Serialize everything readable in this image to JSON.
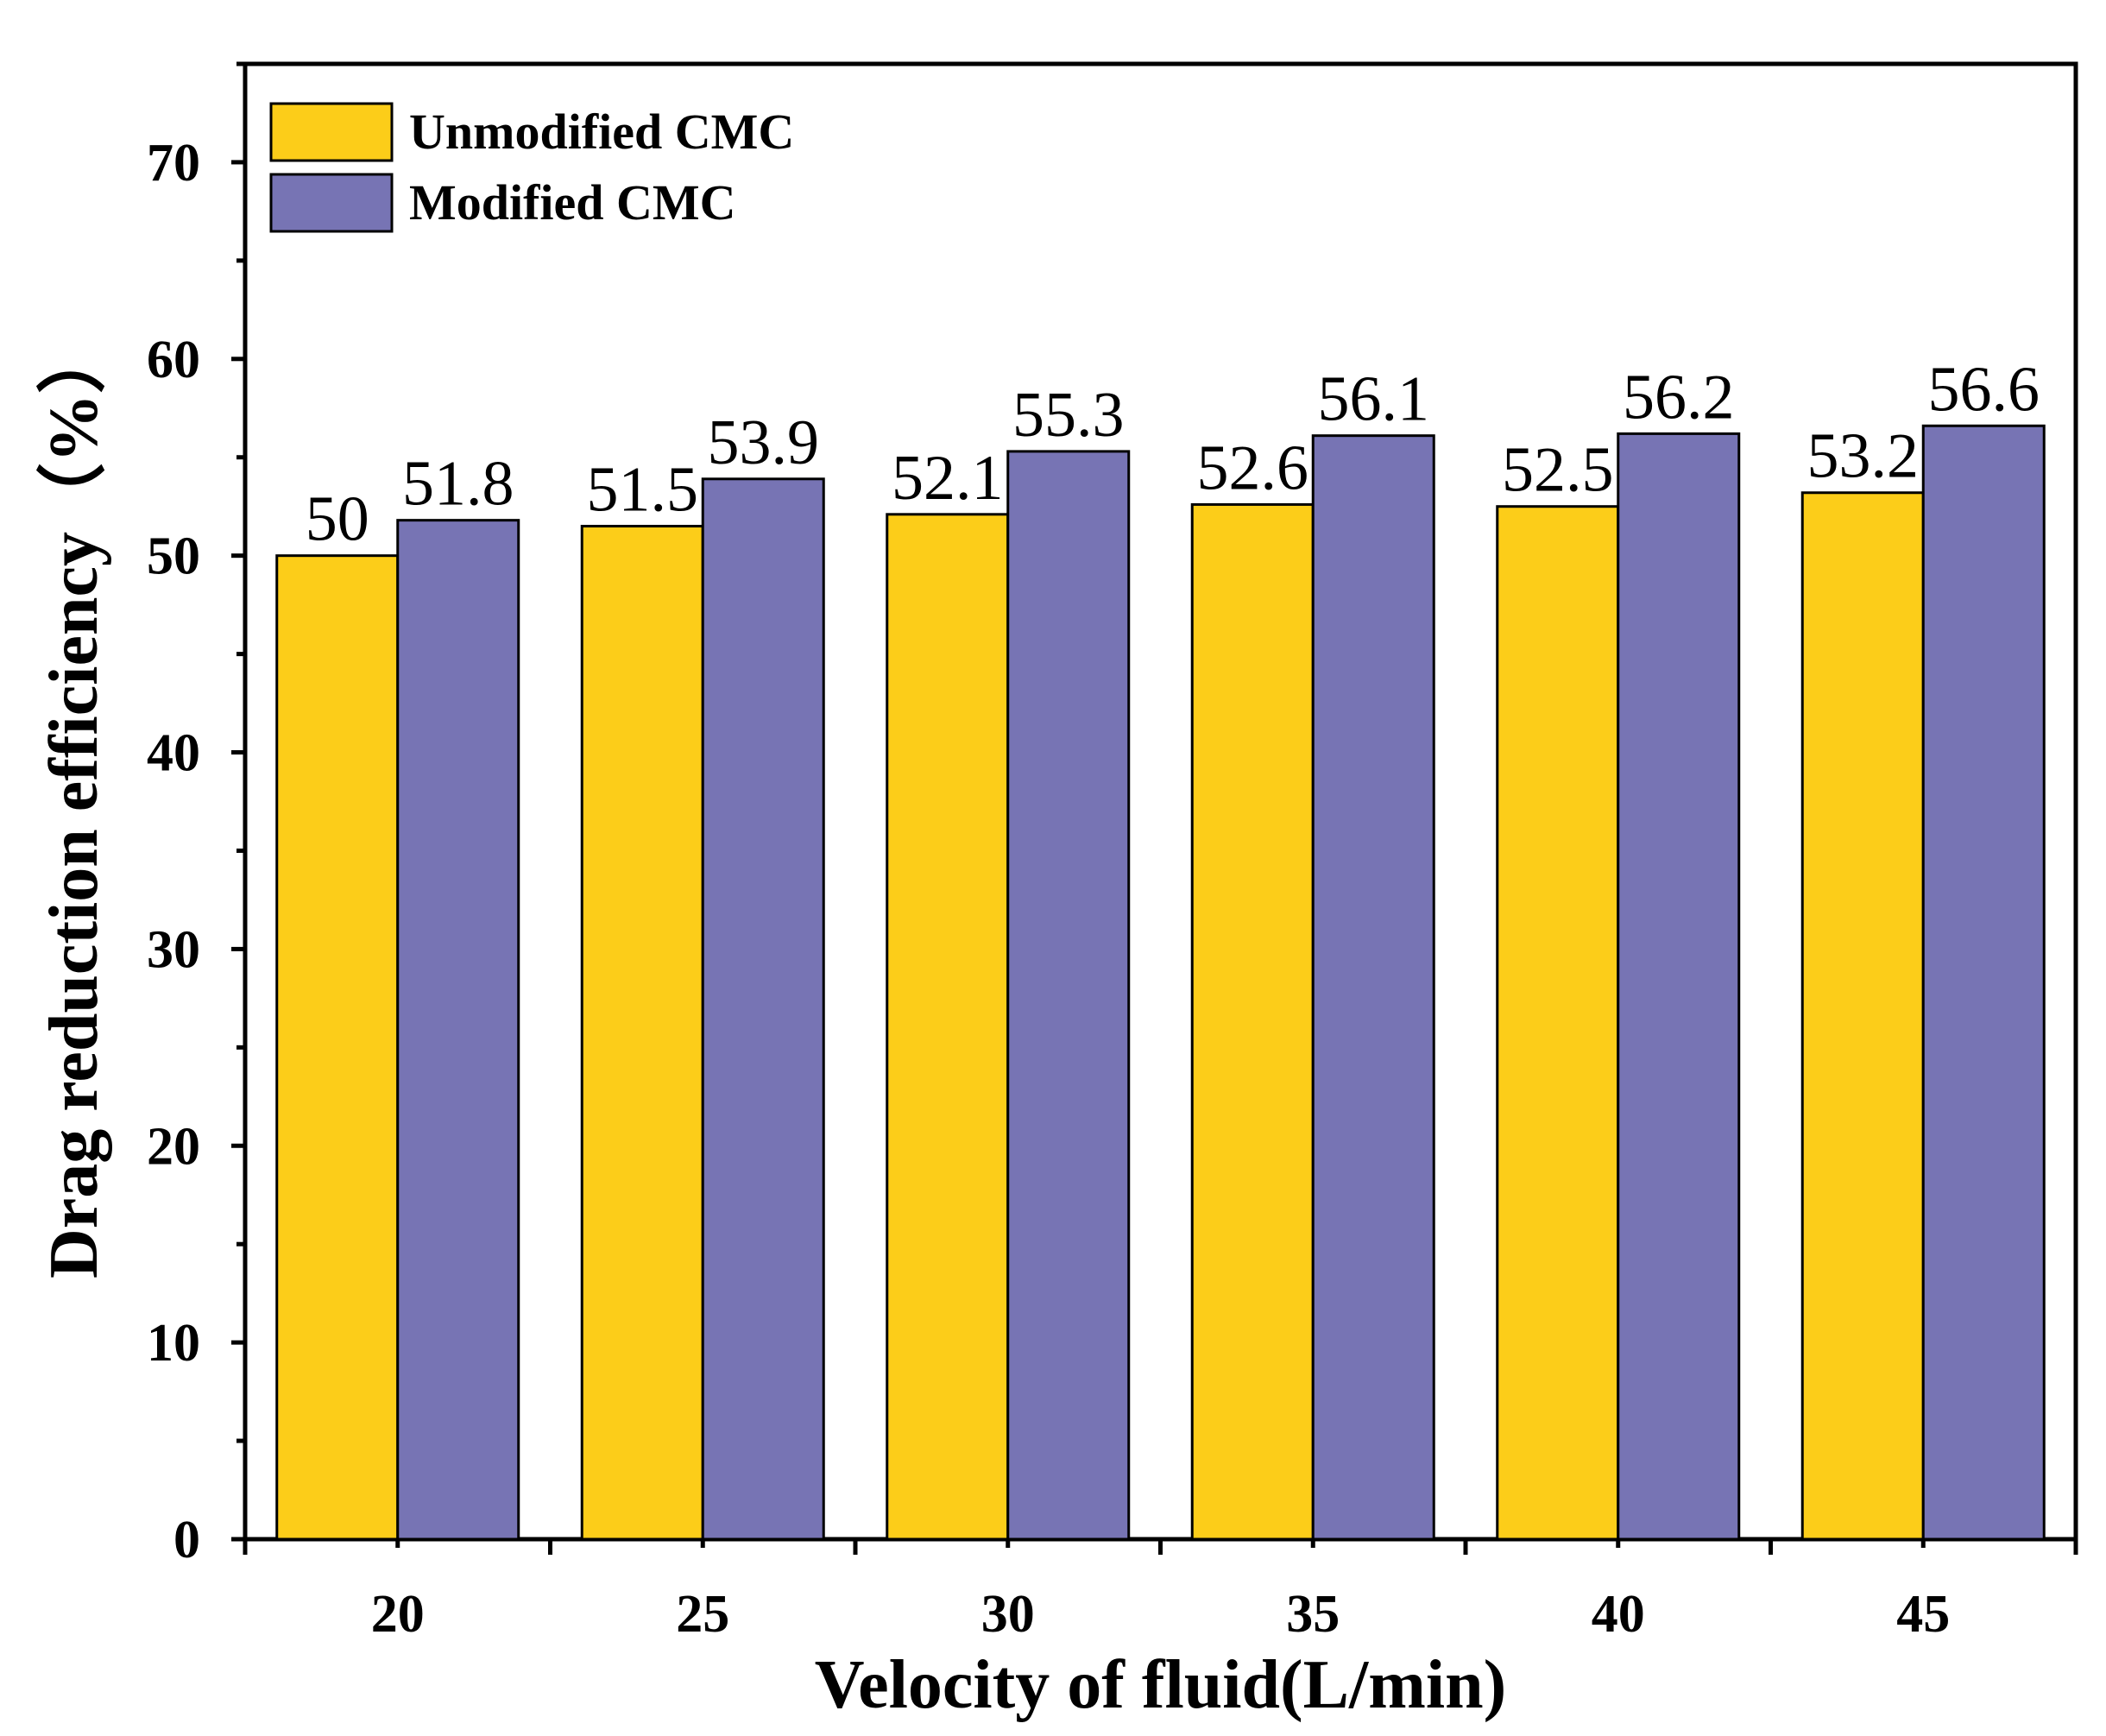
{
  "chart_data": {
    "type": "bar",
    "title": "",
    "xlabel": "Velocity of fluid(L/min)",
    "ylabel": "Drag reduction efficiency（%）",
    "categories": [
      "20",
      "25",
      "30",
      "35",
      "40",
      "45"
    ],
    "series": [
      {
        "name": "Unmodified CMC",
        "color": "#FCCD19",
        "values": [
          50,
          51.5,
          52.1,
          52.6,
          52.5,
          53.2
        ],
        "labels": [
          "50",
          "51.5",
          "52.1",
          "52.6",
          "52.5",
          "53.2"
        ]
      },
      {
        "name": "Modified CMC",
        "color": "#7774B4",
        "values": [
          51.8,
          53.9,
          55.3,
          56.1,
          56.2,
          56.6
        ],
        "labels": [
          "51.8",
          "53.9",
          "55.3",
          "56.1",
          "56.2",
          "56.6"
        ]
      }
    ],
    "ylim": [
      0,
      75
    ],
    "yticks": [
      "0",
      "10",
      "20",
      "30",
      "40",
      "50",
      "60",
      "70"
    ],
    "grid": false,
    "legend_position": "top-left"
  }
}
